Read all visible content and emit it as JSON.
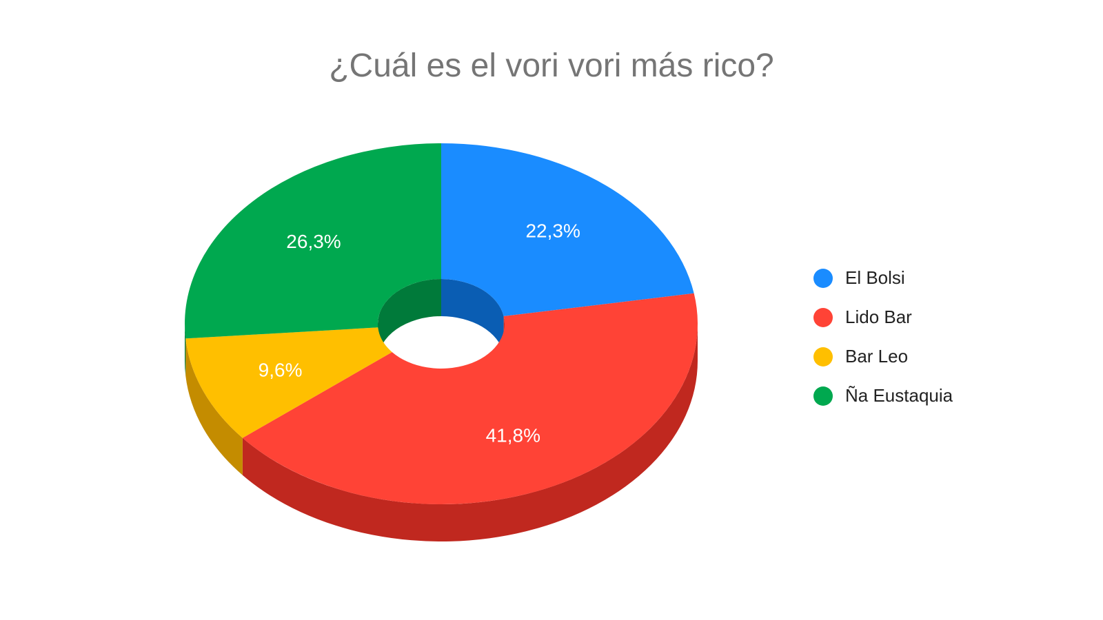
{
  "chart_data": {
    "type": "pie",
    "variant": "3d-donut",
    "title": "¿Cuál es el vori vori más rico?",
    "slices": [
      {
        "label": "El Bolsi",
        "value": 22.3,
        "value_label": "22,3%",
        "color": "#1a8cff",
        "shade": "#0a5db3",
        "hole_shade": "#0a5db3"
      },
      {
        "label": "Lido Bar",
        "value": 41.8,
        "value_label": "41,8%",
        "color": "#ff4336",
        "shade": "#c0281f",
        "hole_shade": "#c0281f"
      },
      {
        "label": "Bar Leo",
        "value": 9.6,
        "value_label": "9,6%",
        "color": "#ffbf00",
        "shade": "#c48c00",
        "hole_shade": "#c48c00"
      },
      {
        "label": "Ña Eustaquia",
        "value": 26.3,
        "value_label": "26,3%",
        "color": "#00a84f",
        "shade": "#007a3a",
        "hole_shade": "#007a3a"
      }
    ],
    "legend_position": "right"
  }
}
